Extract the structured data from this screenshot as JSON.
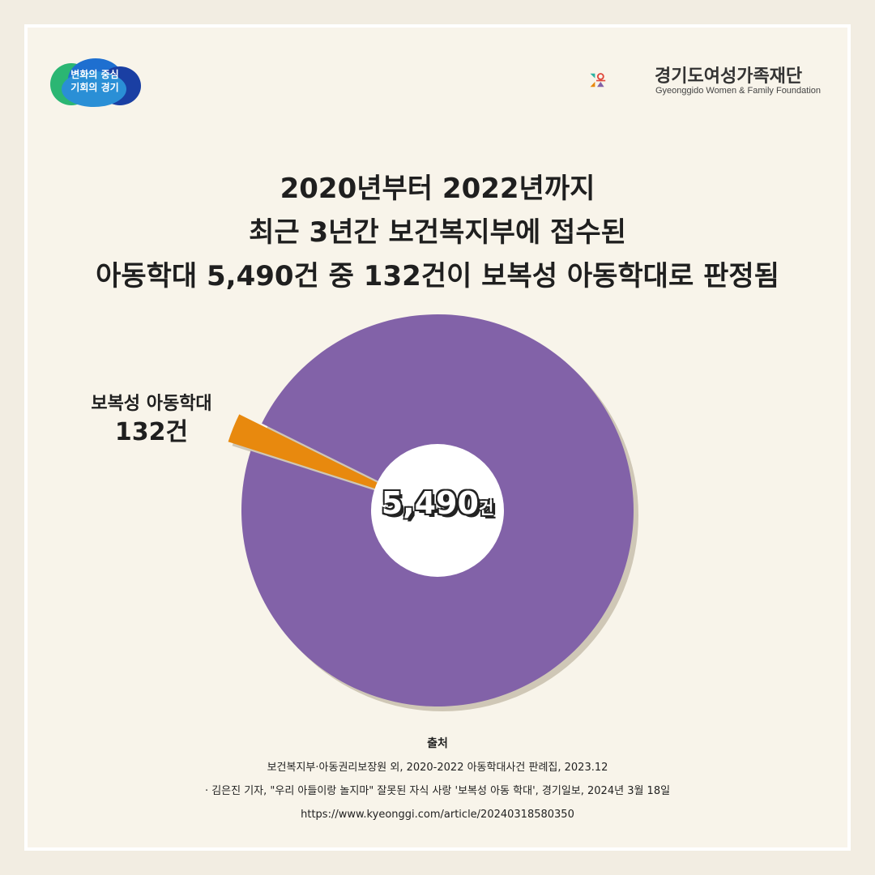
{
  "logos": {
    "left_text": [
      "변화의 중심",
      "기회의 경기"
    ],
    "org_kr": "경기도여성가족재단",
    "org_en": "Gyeonggido Women & Family Foundation"
  },
  "title_lines": [
    "2020년부터 2022년까지",
    "최근 3년간 보건복지부에 접수된",
    "아동학대 5,490건 중 132건이 보복성 아동학대로 판정됨"
  ],
  "chart_data": {
    "type": "pie",
    "title": "",
    "total": 5490,
    "total_label": "5,490",
    "unit": "건",
    "slices": [
      {
        "label": "보복성 아동학대",
        "value": 132,
        "value_label": "132건",
        "color": "#e8890e",
        "exploded": true
      },
      {
        "label": "",
        "value": 5358,
        "color": "#8262a8",
        "exploded": false
      }
    ]
  },
  "source": {
    "heading": "출처",
    "lines": [
      "보건복지부·아동권리보장원 외, 2020-2022 아동학대사건 판례집, 2023.12",
      "· 김은진 기자, \"우리 아들이랑 놀지마\" 잘못된 자식 사랑 '보복성 아동 학대', 경기일보, 2024년 3월 18일",
      "https://www.kyeonggi.com/article/20240318580350"
    ]
  },
  "colors": {
    "background": "#f8f4ea",
    "purple": "#8262a8",
    "orange": "#e8890e"
  }
}
